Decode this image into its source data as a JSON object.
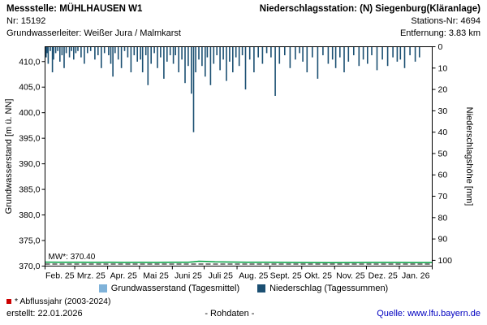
{
  "header": {
    "messstelle": "Messstelle: MÜHLHAUSEN W1",
    "nr": "Nr: 15192",
    "grundwasserleiter": "Grundwasserleiter:  Weißer Jura / Malmkarst",
    "niederschlagsstation": "Niederschlagsstation: (N) Siegenburg(Kläranlage)",
    "stations_nr": "Stations-Nr: 4694",
    "entfernung": "Entfernung: 3.83 km"
  },
  "chart_data": {
    "type": "bar+line",
    "title": "",
    "left_axis": {
      "label": "Grundwasserstand [m ü. NN]",
      "min": 370,
      "max": 412.9,
      "tick_values": [
        410,
        405,
        400,
        395,
        390,
        385,
        380,
        375,
        370
      ],
      "tick_labels": [
        "410,0",
        "405,0",
        "400,0",
        "395,0",
        "390,0",
        "385,0",
        "380,0",
        "375,0",
        "370,0"
      ]
    },
    "right_axis": {
      "label": "Niederschlagshöhe [mm]",
      "inverted": true,
      "max_at_bottom": 102.7,
      "tick_values": [
        0,
        10,
        20,
        30,
        40,
        50,
        60,
        70,
        80,
        90,
        100
      ]
    },
    "x_axis": {
      "month_labels": [
        "Feb. 25",
        "Mrz. 25",
        "Apr. 25",
        "Mai 25",
        "Juni 25",
        "Juli 25",
        "Aug. 25",
        "Sept. 25",
        "Okt. 25",
        "Nov. 25",
        "Dez. 25",
        "Jan. 26"
      ],
      "month_starts": [
        0,
        28,
        59,
        89,
        120,
        150,
        181,
        212,
        242,
        273,
        303,
        334
      ],
      "total_days": 365
    },
    "mean_line": {
      "label": "MW*: 370.40",
      "value": 370.4,
      "color": "#000000",
      "style": "dashed"
    },
    "series": [
      {
        "name": "Grundwasserstand (Tagesmittel)",
        "type": "line",
        "color": "#00a040",
        "points": [
          [
            0,
            370.78
          ],
          [
            15,
            370.76
          ],
          [
            30,
            370.74
          ],
          [
            45,
            370.73
          ],
          [
            60,
            370.74
          ],
          [
            75,
            370.72
          ],
          [
            90,
            370.73
          ],
          [
            105,
            370.72
          ],
          [
            120,
            370.74
          ],
          [
            135,
            370.76
          ],
          [
            140,
            370.82
          ],
          [
            145,
            370.95
          ],
          [
            152,
            370.9
          ],
          [
            160,
            370.85
          ],
          [
            175,
            370.8
          ],
          [
            190,
            370.77
          ],
          [
            210,
            370.74
          ],
          [
            230,
            370.72
          ],
          [
            250,
            370.7
          ],
          [
            270,
            370.69
          ],
          [
            290,
            370.7
          ],
          [
            310,
            370.71
          ],
          [
            330,
            370.72
          ],
          [
            350,
            370.7
          ],
          [
            365,
            370.7
          ]
        ]
      },
      {
        "name": "Niederschlag (Tagessummen)",
        "type": "bar",
        "color": "#1b4f72",
        "points": [
          [
            1,
            5
          ],
          [
            2,
            3
          ],
          [
            3,
            8
          ],
          [
            5,
            2
          ],
          [
            7,
            12
          ],
          [
            8,
            6
          ],
          [
            10,
            3
          ],
          [
            12,
            2
          ],
          [
            14,
            7
          ],
          [
            16,
            4
          ],
          [
            18,
            10
          ],
          [
            20,
            3
          ],
          [
            23,
            5
          ],
          [
            25,
            2
          ],
          [
            27,
            6
          ],
          [
            29,
            3
          ],
          [
            31,
            2
          ],
          [
            34,
            5
          ],
          [
            37,
            8
          ],
          [
            40,
            3
          ],
          [
            43,
            2
          ],
          [
            47,
            6
          ],
          [
            50,
            4
          ],
          [
            53,
            10
          ],
          [
            56,
            3
          ],
          [
            60,
            4
          ],
          [
            62,
            8
          ],
          [
            64,
            14
          ],
          [
            66,
            3
          ],
          [
            69,
            6
          ],
          [
            72,
            10
          ],
          [
            75,
            2
          ],
          [
            78,
            5
          ],
          [
            81,
            12
          ],
          [
            84,
            4
          ],
          [
            87,
            7
          ],
          [
            90,
            6
          ],
          [
            92,
            12
          ],
          [
            95,
            4
          ],
          [
            97,
            18
          ],
          [
            100,
            8
          ],
          [
            103,
            3
          ],
          [
            106,
            10
          ],
          [
            109,
            5
          ],
          [
            112,
            15
          ],
          [
            115,
            7
          ],
          [
            118,
            4
          ],
          [
            121,
            8
          ],
          [
            123,
            4
          ],
          [
            126,
            12
          ],
          [
            129,
            6
          ],
          [
            132,
            17
          ],
          [
            135,
            9
          ],
          [
            138,
            22
          ],
          [
            140,
            40
          ],
          [
            142,
            12
          ],
          [
            145,
            6
          ],
          [
            148,
            9
          ],
          [
            151,
            14
          ],
          [
            153,
            5
          ],
          [
            156,
            18
          ],
          [
            159,
            8
          ],
          [
            162,
            4
          ],
          [
            165,
            11
          ],
          [
            168,
            6
          ],
          [
            171,
            16
          ],
          [
            174,
            7
          ],
          [
            177,
            12
          ],
          [
            180,
            5
          ],
          [
            183,
            9
          ],
          [
            186,
            4
          ],
          [
            189,
            20
          ],
          [
            193,
            6
          ],
          [
            197,
            12
          ],
          [
            201,
            5
          ],
          [
            205,
            8
          ],
          [
            209,
            3
          ],
          [
            213,
            5
          ],
          [
            217,
            23
          ],
          [
            221,
            8
          ],
          [
            226,
            4
          ],
          [
            231,
            10
          ],
          [
            236,
            6
          ],
          [
            240,
            3
          ],
          [
            243,
            7
          ],
          [
            247,
            12
          ],
          [
            252,
            5
          ],
          [
            257,
            15
          ],
          [
            262,
            4
          ],
          [
            267,
            8
          ],
          [
            271,
            6
          ],
          [
            274,
            10
          ],
          [
            278,
            5
          ],
          [
            282,
            12
          ],
          [
            286,
            7
          ],
          [
            291,
            4
          ],
          [
            296,
            9
          ],
          [
            300,
            6
          ],
          [
            304,
            8
          ],
          [
            308,
            4
          ],
          [
            313,
            11
          ],
          [
            318,
            6
          ],
          [
            323,
            9
          ],
          [
            328,
            5
          ],
          [
            332,
            7
          ],
          [
            335,
            6
          ],
          [
            339,
            10
          ],
          [
            344,
            4
          ],
          [
            349,
            7
          ],
          [
            353,
            5
          ]
        ]
      }
    ],
    "legend": [
      {
        "label": "Grundwasserstand (Tagesmittel)",
        "color": "#7fb2d9"
      },
      {
        "label": "Niederschlag (Tagessummen)",
        "color": "#1b4f72"
      }
    ]
  },
  "footer": {
    "footnote": "* Abflussjahr (2003-2024)",
    "footnote_marker_color": "#cc0000",
    "erstellt": "erstellt:  22.01.2026",
    "rohdaten": "- Rohdaten -",
    "quelle": "Quelle: www.lfu.bayern.de"
  }
}
